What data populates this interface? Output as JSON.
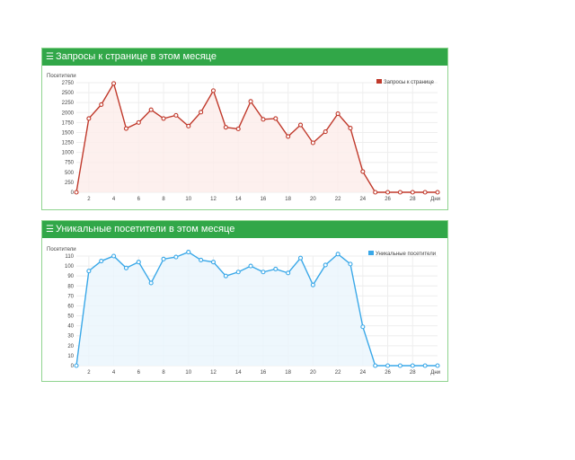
{
  "panels": [
    {
      "icon": "menu-icon",
      "title": "Запросы к странице в этом месяце",
      "color": "#c0392b",
      "fill": "#fdecea",
      "chart_data": {
        "type": "line",
        "ylabel": "Посетители",
        "xlabel": "Дни",
        "x": [
          1,
          2,
          3,
          4,
          5,
          6,
          7,
          8,
          9,
          10,
          11,
          12,
          13,
          14,
          15,
          16,
          17,
          18,
          19,
          20,
          21,
          22,
          23,
          24,
          25,
          26,
          27,
          28,
          29,
          30
        ],
        "series": [
          {
            "name": "Запросы к странице",
            "values": [
              0,
              1850,
              2200,
              2730,
              1600,
              1750,
              2070,
              1850,
              1930,
              1660,
              2010,
              2550,
              1630,
              1590,
              2280,
              1830,
              1850,
              1400,
              1690,
              1240,
              1520,
              1970,
              1610,
              520,
              0,
              0,
              0,
              0,
              0,
              0
            ]
          }
        ],
        "yticks": [
          0,
          250,
          500,
          750,
          1000,
          1250,
          1500,
          1750,
          2000,
          2250,
          2500,
          2750
        ],
        "xticks": [
          2,
          4,
          6,
          8,
          10,
          12,
          14,
          16,
          18,
          20,
          22,
          24,
          26,
          28
        ],
        "ylim": [
          0,
          2750
        ],
        "xlim": [
          1,
          30
        ],
        "grid": true,
        "legend": "top-right"
      }
    },
    {
      "icon": "menu-icon",
      "title": "Уникальные посетители в этом месяце",
      "color": "#3aa8e8",
      "fill": "#eaf5fc",
      "chart_data": {
        "type": "line",
        "ylabel": "Посетители",
        "xlabel": "Дни",
        "x": [
          1,
          2,
          3,
          4,
          5,
          6,
          7,
          8,
          9,
          10,
          11,
          12,
          13,
          14,
          15,
          16,
          17,
          18,
          19,
          20,
          21,
          22,
          23,
          24,
          25,
          26,
          27,
          28,
          29,
          30
        ],
        "series": [
          {
            "name": "Уникальные посетители",
            "values": [
              0,
              95,
              105,
              110,
              98,
              104,
              83,
              107,
              109,
              114,
              106,
              104,
              90,
              94,
              100,
              94,
              97,
              93,
              108,
              81,
              101,
              112,
              102,
              39,
              0,
              0,
              0,
              0,
              0,
              0
            ]
          }
        ],
        "yticks": [
          0,
          10,
          20,
          30,
          40,
          50,
          60,
          70,
          80,
          90,
          100,
          110
        ],
        "xticks": [
          2,
          4,
          6,
          8,
          10,
          12,
          14,
          16,
          18,
          20,
          22,
          24,
          26,
          28
        ],
        "ylim": [
          0,
          110
        ],
        "xlim": [
          1,
          30
        ],
        "grid": true,
        "legend": "top-right"
      }
    }
  ]
}
